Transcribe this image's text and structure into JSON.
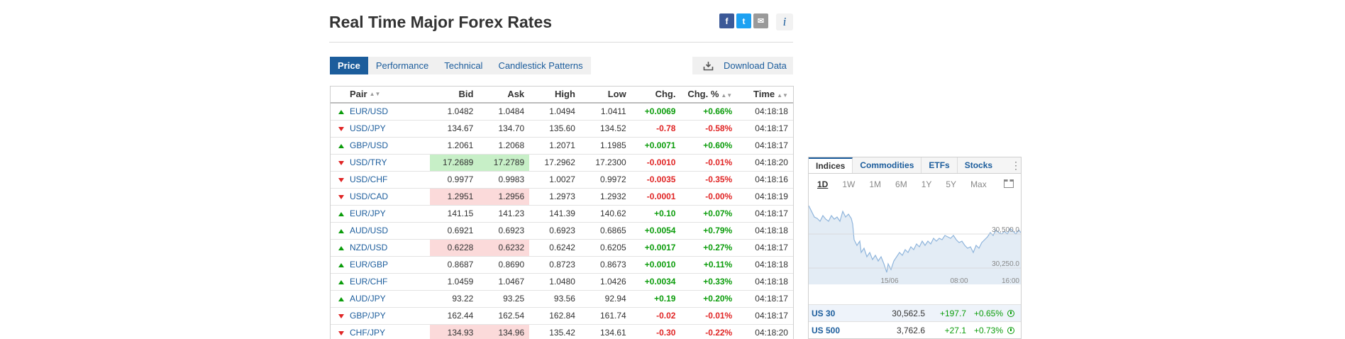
{
  "header": {
    "title": "Real Time Major Forex Rates"
  },
  "social": {
    "facebook": "f",
    "twitter": "t",
    "email": "✉",
    "info": "i"
  },
  "tabs": [
    {
      "label": "Price",
      "active": true
    },
    {
      "label": "Performance"
    },
    {
      "label": "Technical"
    },
    {
      "label": "Candlestick Patterns"
    }
  ],
  "download": {
    "label": "Download Data"
  },
  "table": {
    "columns": {
      "pair": "Pair",
      "bid": "Bid",
      "ask": "Ask",
      "high": "High",
      "low": "Low",
      "chg": "Chg.",
      "pct": "Chg. %",
      "time": "Time"
    },
    "rows": [
      {
        "pair": "EUR/USD",
        "dir": "up",
        "bid": "1.0482",
        "ask": "1.0484",
        "high": "1.0494",
        "low": "1.0411",
        "chg": "+0.0069",
        "pct": "+0.66%",
        "time": "04:18:18",
        "hl": ""
      },
      {
        "pair": "USD/JPY",
        "dir": "dn",
        "bid": "134.67",
        "ask": "134.70",
        "high": "135.60",
        "low": "134.52",
        "chg": "-0.78",
        "pct": "-0.58%",
        "time": "04:18:17",
        "hl": ""
      },
      {
        "pair": "GBP/USD",
        "dir": "up",
        "bid": "1.2061",
        "ask": "1.2068",
        "high": "1.2071",
        "low": "1.1985",
        "chg": "+0.0071",
        "pct": "+0.60%",
        "time": "04:18:17",
        "hl": ""
      },
      {
        "pair": "USD/TRY",
        "dir": "dn",
        "bid": "17.2689",
        "ask": "17.2789",
        "high": "17.2962",
        "low": "17.2300",
        "chg": "-0.0010",
        "pct": "-0.01%",
        "time": "04:18:20",
        "hl": "up"
      },
      {
        "pair": "USD/CHF",
        "dir": "dn",
        "bid": "0.9977",
        "ask": "0.9983",
        "high": "1.0027",
        "low": "0.9972",
        "chg": "-0.0035",
        "pct": "-0.35%",
        "time": "04:18:16",
        "hl": ""
      },
      {
        "pair": "USD/CAD",
        "dir": "dn",
        "bid": "1.2951",
        "ask": "1.2956",
        "high": "1.2973",
        "low": "1.2932",
        "chg": "-0.0001",
        "pct": "-0.00%",
        "time": "04:18:19",
        "hl": "dn"
      },
      {
        "pair": "EUR/JPY",
        "dir": "up",
        "bid": "141.15",
        "ask": "141.23",
        "high": "141.39",
        "low": "140.62",
        "chg": "+0.10",
        "pct": "+0.07%",
        "time": "04:18:17",
        "hl": ""
      },
      {
        "pair": "AUD/USD",
        "dir": "up",
        "bid": "0.6921",
        "ask": "0.6923",
        "high": "0.6923",
        "low": "0.6865",
        "chg": "+0.0054",
        "pct": "+0.79%",
        "time": "04:18:18",
        "hl": ""
      },
      {
        "pair": "NZD/USD",
        "dir": "up",
        "bid": "0.6228",
        "ask": "0.6232",
        "high": "0.6242",
        "low": "0.6205",
        "chg": "+0.0017",
        "pct": "+0.27%",
        "time": "04:18:17",
        "hl": "dn"
      },
      {
        "pair": "EUR/GBP",
        "dir": "up",
        "bid": "0.8687",
        "ask": "0.8690",
        "high": "0.8723",
        "low": "0.8673",
        "chg": "+0.0010",
        "pct": "+0.11%",
        "time": "04:18:18",
        "hl": ""
      },
      {
        "pair": "EUR/CHF",
        "dir": "up",
        "bid": "1.0459",
        "ask": "1.0467",
        "high": "1.0480",
        "low": "1.0426",
        "chg": "+0.0034",
        "pct": "+0.33%",
        "time": "04:18:18",
        "hl": ""
      },
      {
        "pair": "AUD/JPY",
        "dir": "up",
        "bid": "93.22",
        "ask": "93.25",
        "high": "93.56",
        "low": "92.94",
        "chg": "+0.19",
        "pct": "+0.20%",
        "time": "04:18:17",
        "hl": ""
      },
      {
        "pair": "GBP/JPY",
        "dir": "dn",
        "bid": "162.44",
        "ask": "162.54",
        "high": "162.84",
        "low": "161.74",
        "chg": "-0.02",
        "pct": "-0.01%",
        "time": "04:18:17",
        "hl": ""
      },
      {
        "pair": "CHF/JPY",
        "dir": "dn",
        "bid": "134.93",
        "ask": "134.96",
        "high": "135.42",
        "low": "134.61",
        "chg": "-0.30",
        "pct": "-0.22%",
        "time": "04:18:20",
        "hl": "dn"
      }
    ]
  },
  "widget": {
    "tabs": [
      {
        "label": "Indices",
        "active": true
      },
      {
        "label": "Commodities"
      },
      {
        "label": "ETFs"
      },
      {
        "label": "Stocks"
      }
    ],
    "more": "⋮",
    "periods": [
      {
        "label": "1D",
        "active": true
      },
      {
        "label": "1W"
      },
      {
        "label": "1M"
      },
      {
        "label": "6M"
      },
      {
        "label": "1Y"
      },
      {
        "label": "5Y"
      },
      {
        "label": "Max"
      }
    ],
    "chart": {
      "y_labels": [
        "30,500.0",
        "30,250.0"
      ],
      "x_labels": [
        "15/06",
        "08:00",
        "16:00"
      ],
      "line_color": "#8fb5dc",
      "fill_color": "#e3ecf5"
    },
    "quotes": [
      {
        "name": "US 30",
        "last": "30,562.5",
        "chg": "+197.7",
        "pct": "+0.65%"
      },
      {
        "name": "US 500",
        "last": "3,762.6",
        "chg": "+27.1",
        "pct": "+0.73%"
      }
    ]
  }
}
